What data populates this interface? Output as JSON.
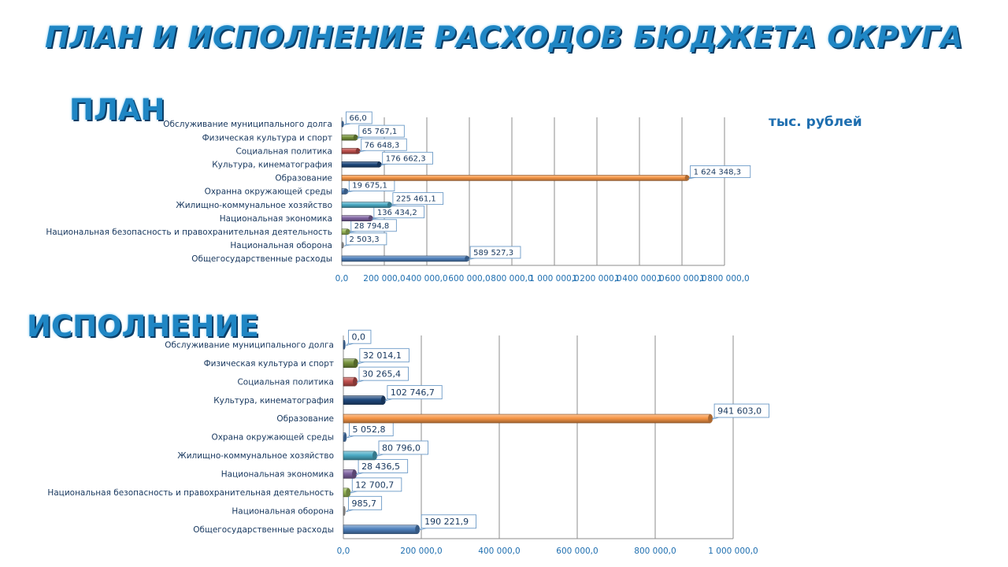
{
  "title": "ПЛАН И ИСПОЛНЕНИЕ РАСХОДОВ БЮДЖЕТА ОКРУГА",
  "units": "тыс. рублей",
  "palette": [
    "#4f81bd",
    "#b0b0b0",
    "#9bbb59",
    "#8064a2",
    "#4bacc6",
    "#4f81bd",
    "#f79646",
    "#1f497d",
    "#c0504d",
    "#77933c",
    "#4f81bd"
  ],
  "chart_data": [
    {
      "type": "bar",
      "title": "ПЛАН",
      "orientation": "horizontal",
      "categories": [
        "Общегосударственные расходы",
        "Национальная оборона",
        "Национальная безопасность и правохранительная деятельность",
        "Национальная экономика",
        "Жилищно-коммунальное хозяйство",
        "Охранна окружающей среды",
        "Образование",
        "Культура, кинематография",
        "Социальная политика",
        "Физическая культура и спорт",
        "Обслуживание муниципального долга"
      ],
      "values": [
        589527.3,
        2503.3,
        28794.8,
        136434.2,
        225461.1,
        19675.1,
        1624348.3,
        176662.3,
        76648.3,
        65767.1,
        66.0
      ],
      "value_labels": [
        "589 527,3",
        "2 503,3",
        "28 794,8",
        "136 434,2",
        "225 461,1",
        "19 675,1",
        "1 624 348,3",
        "176 662,3",
        "76 648,3",
        "65 767,1",
        "66,0"
      ],
      "xlim": [
        0,
        1800000
      ],
      "xticks": [
        0,
        200000,
        400000,
        600000,
        800000,
        1000000,
        1200000,
        1400000,
        1600000,
        1800000
      ],
      "xtick_labels": [
        "0,0",
        "200 000,0",
        "400 000,0",
        "600 000,0",
        "800 000,0",
        "1 000 000,0",
        "1 200 000,0",
        "1 400 000,0",
        "1 600 000,0",
        "1 800 000,0"
      ],
      "grid": true,
      "legend": "none"
    },
    {
      "type": "bar",
      "title": "ИСПОЛНЕНИЕ",
      "orientation": "horizontal",
      "categories": [
        "Общегосударственные расходы",
        "Национальная оборона",
        "Национальная безопасность и правохранительная деятельность",
        "Национальная экономика",
        "Жилищно-коммунальное хозяйство",
        "Охрана окружающей среды",
        "Образование",
        "Культура, кинематография",
        "Социальная политика",
        "Физическая культура и спорт",
        "Обслуживание муниципального долга"
      ],
      "values": [
        190221.9,
        985.7,
        12700.7,
        28436.5,
        80796.0,
        5052.8,
        941603.0,
        102746.7,
        30265.4,
        32014.1,
        0.0
      ],
      "value_labels": [
        "190 221,9",
        "985,7",
        "12 700,7",
        "28 436,5",
        "80 796,0",
        "5 052,8",
        "941 603,0",
        "102 746,7",
        "30 265,4",
        "32 014,1",
        "0,0"
      ],
      "xlim": [
        0,
        1000000
      ],
      "xticks": [
        0,
        200000,
        400000,
        600000,
        800000,
        1000000
      ],
      "xtick_labels": [
        "0,0",
        "200 000,0",
        "400 000,0",
        "600 000,0",
        "800 000,0",
        "1 000 000,0"
      ],
      "grid": true,
      "legend": "none"
    }
  ]
}
